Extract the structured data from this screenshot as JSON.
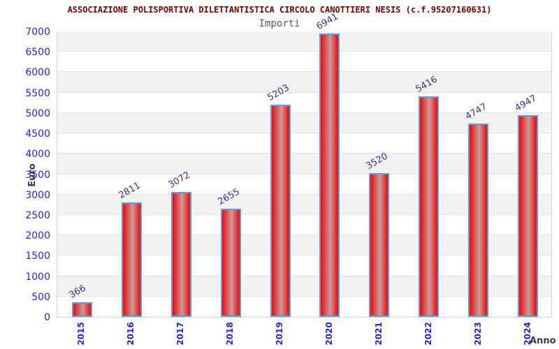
{
  "chart_data": {
    "type": "bar",
    "title": "ASSOCIAZIONE POLISPORTIVA DILETTANTISTICA CIRCOLO CANOTTIERI NESIS (c.f.95207160631)",
    "subtitle": "Importi",
    "categories": [
      "2015",
      "2016",
      "2017",
      "2018",
      "2019",
      "2020",
      "2021",
      "2022",
      "2023",
      "2024"
    ],
    "values": [
      366,
      2811,
      3072,
      2655,
      5203,
      6941,
      3520,
      5416,
      4747,
      4947
    ],
    "xlabel": "Anno",
    "ylabel": "Euro",
    "ylim": [
      0,
      7000
    ],
    "ytick_step": 500,
    "yticks": [
      0,
      500,
      1000,
      1500,
      2000,
      2500,
      3000,
      3500,
      4000,
      4500,
      5000,
      5500,
      6000,
      6500,
      7000
    ],
    "grid": "alternating horizontal gray/white bands every 500, thin gridlines",
    "legend": "none",
    "bar_labels_rotation_deg": -30,
    "xtick_rotation_deg": -90
  },
  "colors": {
    "title": "#7a0000",
    "subtitle": "#595959",
    "axis_tick_blue": "#2323e0",
    "value_label": "#333399",
    "axis_title": "#3a3a3a",
    "bar_red": "#ee1212",
    "bar_highlight": "#c99c9c",
    "bar_border": "#55a0e6",
    "band_gray": "#f2f2f2",
    "band_white": "#ffffff",
    "gridline": "#e2e2e2",
    "plot_border": "#d3d3d3"
  }
}
